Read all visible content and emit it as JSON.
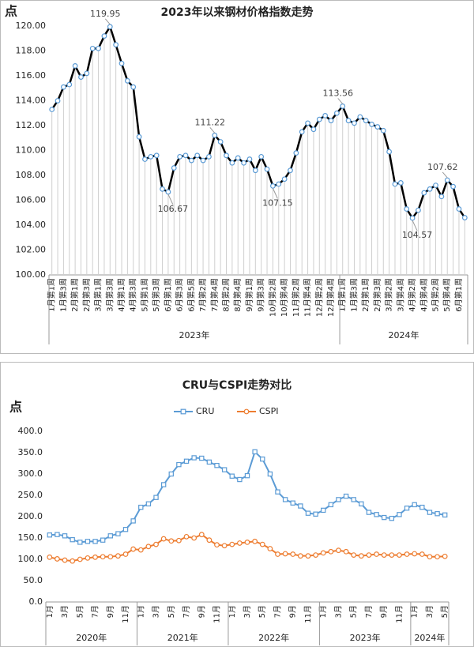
{
  "chart_data": [
    {
      "type": "line",
      "title": "2023年以来钢材价格指数走势",
      "y_label": "点",
      "categories": [
        "1月第1周",
        null,
        "1月第3周",
        null,
        "2月第1周",
        null,
        "2月第3周",
        null,
        "3月第1周",
        null,
        "3月第3周",
        null,
        "4月第1周",
        null,
        "4月第3周",
        null,
        "5月第1周",
        null,
        "5月第3周",
        null,
        "6月第1周",
        null,
        "6月第3周",
        null,
        "6月第5周",
        null,
        "7月第2周",
        null,
        "7月第4周",
        null,
        "8月第2周",
        null,
        "8月第4周",
        null,
        "9月第1周",
        null,
        "9月第3周",
        null,
        "10月第2周",
        null,
        "10月第4周",
        null,
        "11月第2周",
        null,
        "11月第4周",
        null,
        "12月第2周",
        null,
        "12月第4周",
        null,
        "1月第1周",
        null,
        "1月第3周",
        null,
        "2月第1周",
        null,
        "2月第3周",
        null,
        "3月第2周",
        null,
        "3月第4周",
        null,
        "4月第2周",
        null,
        "4月第4周",
        null,
        "5月第2周",
        null,
        "5月第4周",
        null,
        "6月第1周",
        null
      ],
      "groups": [
        {
          "label": "2023年",
          "count": 50
        },
        {
          "label": "2024年",
          "count": 22
        }
      ],
      "values": [
        113.3,
        114.0,
        115.1,
        115.3,
        116.8,
        115.9,
        116.2,
        118.2,
        118.2,
        119.2,
        119.95,
        118.5,
        117.0,
        115.6,
        115.1,
        111.1,
        109.3,
        109.5,
        109.6,
        106.9,
        106.67,
        108.6,
        109.5,
        109.6,
        109.2,
        109.6,
        109.2,
        109.5,
        111.22,
        110.7,
        109.6,
        109.0,
        109.4,
        109.0,
        109.3,
        108.4,
        109.5,
        108.5,
        107.15,
        107.3,
        107.7,
        108.4,
        109.8,
        111.5,
        112.2,
        111.7,
        112.5,
        112.8,
        112.4,
        113.0,
        113.56,
        112.4,
        112.2,
        112.7,
        112.4,
        112.1,
        111.9,
        111.6,
        109.9,
        107.3,
        107.4,
        105.3,
        104.57,
        105.2,
        106.6,
        106.9,
        107.2,
        106.3,
        107.62,
        107.1,
        105.3,
        104.6
      ],
      "value_labels": [
        null,
        null,
        null,
        null,
        null,
        null,
        null,
        null,
        null,
        null,
        "119.95",
        null,
        null,
        null,
        null,
        null,
        null,
        null,
        null,
        null,
        "106.67",
        null,
        null,
        null,
        null,
        null,
        null,
        null,
        "111.22",
        null,
        null,
        null,
        null,
        null,
        null,
        null,
        null,
        null,
        "107.15",
        null,
        null,
        null,
        null,
        null,
        null,
        null,
        null,
        null,
        null,
        null,
        "113.56",
        null,
        null,
        null,
        null,
        null,
        null,
        null,
        null,
        null,
        null,
        null,
        "104.57",
        null,
        null,
        null,
        null,
        null,
        "107.62",
        null,
        null,
        null
      ],
      "color": "#000000",
      "marker": "circle",
      "marker_color": "#5b9bd5",
      "drop_lines": true,
      "ylim": [
        100,
        120
      ],
      "yticks": [
        {
          "value": 100,
          "label": "100.00"
        },
        {
          "value": 102,
          "label": "102.00"
        },
        {
          "value": 104,
          "label": "104.00"
        },
        {
          "value": 106,
          "label": "106.00"
        },
        {
          "value": 108,
          "label": "108.00"
        },
        {
          "value": 110,
          "label": "110.00"
        },
        {
          "value": 112,
          "label": "112.00"
        },
        {
          "value": 114,
          "label": "114.00"
        },
        {
          "value": 116,
          "label": "116.00"
        },
        {
          "value": 118,
          "label": "118.00"
        },
        {
          "value": 120,
          "label": "120.00"
        }
      ],
      "grid": false
    },
    {
      "type": "line",
      "title": "CRU与CSPI走势对比",
      "y_label": "点",
      "categories": [
        "1月",
        null,
        "3月",
        null,
        "5月",
        null,
        "7月",
        null,
        "9月",
        null,
        "11月",
        null,
        "1月",
        null,
        "3月",
        null,
        "5月",
        null,
        "7月",
        null,
        "9月",
        null,
        "11月",
        null,
        "1月",
        null,
        "3月",
        null,
        "5月",
        null,
        "7月",
        null,
        "9月",
        null,
        "11月",
        null,
        "1月",
        null,
        "3月",
        null,
        "5月",
        null,
        "7月",
        null,
        "9月",
        null,
        "11月",
        null,
        "1月",
        null,
        "3月",
        null,
        "5月"
      ],
      "groups": [
        {
          "label": "2020年",
          "count": 12
        },
        {
          "label": "2021年",
          "count": 12
        },
        {
          "label": "2022年",
          "count": 12
        },
        {
          "label": "2023年",
          "count": 12
        },
        {
          "label": "2024年",
          "count": 5
        }
      ],
      "series": [
        {
          "name": "CRU",
          "color": "#5b9bd5",
          "marker": "square",
          "values": [
            157,
            158,
            155,
            146,
            140,
            142,
            142,
            145,
            155,
            160,
            170,
            190,
            222,
            230,
            245,
            275,
            300,
            322,
            330,
            338,
            337,
            328,
            320,
            310,
            295,
            287,
            296,
            352,
            335,
            300,
            258,
            240,
            232,
            225,
            208,
            206,
            215,
            228,
            240,
            248,
            240,
            230,
            210,
            205,
            198,
            196,
            205,
            220,
            228,
            222,
            210,
            207,
            204
          ]
        },
        {
          "name": "CSPI",
          "color": "#ed7d31",
          "marker": "circle",
          "values": [
            105,
            101,
            98,
            96,
            100,
            103,
            105,
            106,
            106,
            108,
            112,
            124,
            122,
            130,
            135,
            148,
            143,
            144,
            153,
            150,
            158,
            145,
            134,
            132,
            135,
            138,
            140,
            142,
            135,
            125,
            112,
            113,
            112,
            108,
            108,
            110,
            115,
            118,
            121,
            118,
            110,
            108,
            110,
            112,
            110,
            110,
            110,
            112,
            113,
            112,
            106,
            106,
            107
          ]
        }
      ],
      "legend": "top",
      "ylim": [
        0,
        400
      ],
      "yticks": [
        {
          "value": 0,
          "label": "0.0"
        },
        {
          "value": 50,
          "label": "50.0"
        },
        {
          "value": 100,
          "label": "100.0"
        },
        {
          "value": 150,
          "label": "150.0"
        },
        {
          "value": 200,
          "label": "200.0"
        },
        {
          "value": 250,
          "label": "250.0"
        },
        {
          "value": 300,
          "label": "300.0"
        },
        {
          "value": 350,
          "label": "350.0"
        },
        {
          "value": 400,
          "label": "400.0"
        }
      ],
      "grid": false
    }
  ]
}
